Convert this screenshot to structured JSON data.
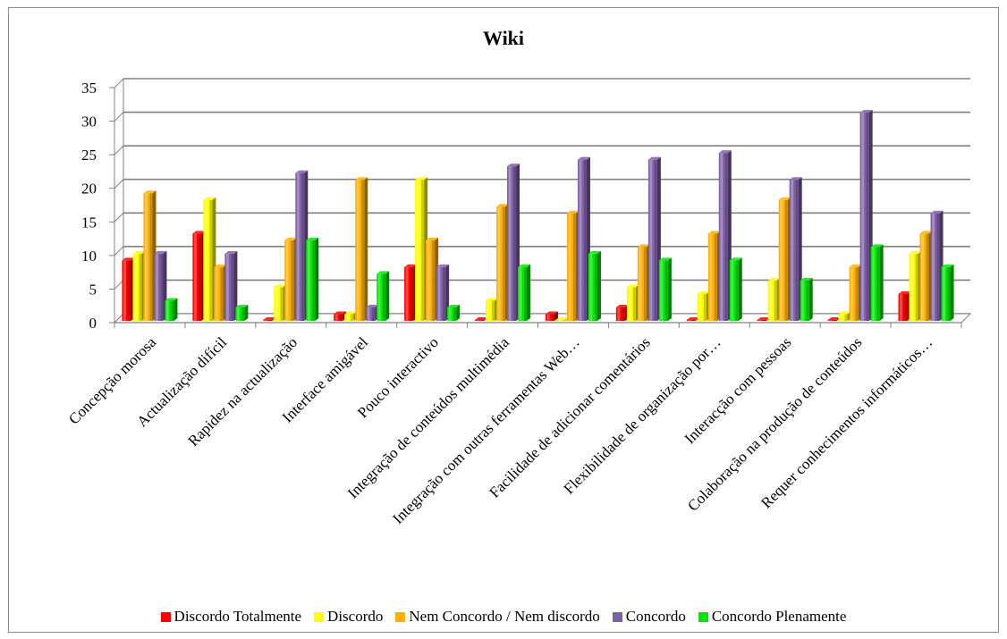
{
  "chart_data": {
    "type": "bar",
    "title": "Wiki",
    "ylim": [
      0,
      35
    ],
    "yticks": [
      0,
      5,
      10,
      15,
      20,
      25,
      30,
      35
    ],
    "grid": true,
    "legend_position": "bottom",
    "categories": [
      "Concepção morosa",
      "Actualização difícil",
      "Rapidez na actualização",
      "Interface amigável",
      "Pouco interactivo",
      "Integração de conteúdos multimédia",
      "Integração com outras ferramentas Web…",
      "Facilidade de adicionar comentários",
      "Flexibilidade de organização por…",
      "Interacção com pessoas",
      "Colaboração na produção de conteúdos",
      "Requer conhecimentos informáticos…"
    ],
    "series": [
      {
        "name": "Discordo Totalmente",
        "color": "#ff0000",
        "values": [
          9,
          13,
          0,
          1,
          8,
          0,
          1,
          2,
          0,
          0,
          0,
          4
        ]
      },
      {
        "name": "Discordo",
        "color": "#ffff00",
        "values": [
          10,
          18,
          5,
          1,
          21,
          3,
          0,
          5,
          4,
          6,
          1,
          10
        ]
      },
      {
        "name": "Nem Concordo / Nem discordo",
        "color": "#ffb000",
        "values": [
          19,
          8,
          12,
          21,
          12,
          17,
          16,
          11,
          13,
          18,
          8,
          13
        ]
      },
      {
        "name": "Concordo",
        "color": "#7f5fa8",
        "values": [
          10,
          10,
          22,
          2,
          8,
          23,
          24,
          24,
          25,
          21,
          31,
          16
        ]
      },
      {
        "name": "Concordo Plenamente",
        "color": "#00e600",
        "values": [
          3,
          2,
          12,
          7,
          2,
          8,
          10,
          9,
          9,
          6,
          11,
          8
        ]
      }
    ]
  }
}
